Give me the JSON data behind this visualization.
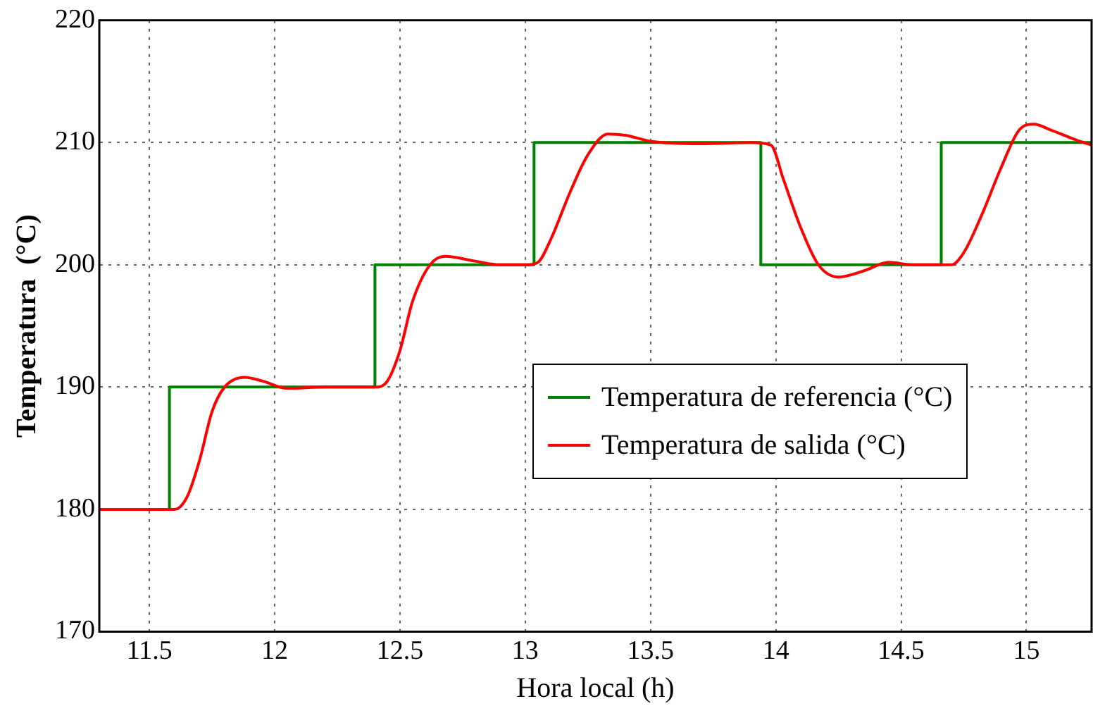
{
  "chart_data": {
    "type": "line",
    "xlabel": "Hora local (h)",
    "ylabel": "Temperatura  (°C)",
    "xlim": [
      11.3,
      15.26
    ],
    "xticks": [
      {
        "value": 11.5,
        "label": "11.5"
      },
      {
        "value": 12,
        "label": "12"
      },
      {
        "value": 12.5,
        "label": "12.5"
      },
      {
        "value": 13,
        "label": "13"
      },
      {
        "value": 13.5,
        "label": "13.5"
      },
      {
        "value": 14,
        "label": "14"
      },
      {
        "value": 14.5,
        "label": "14.5"
      },
      {
        "value": 15,
        "label": "15"
      }
    ],
    "ylim": [
      170,
      220
    ],
    "yticks": [
      170,
      180,
      190,
      200,
      210,
      220
    ],
    "grid": true,
    "legend": "right",
    "marker": "none",
    "series": [
      {
        "name": "Temperatura de referencia (°C)",
        "type": "step",
        "color": "#008000",
        "x": [
          11.3,
          11.58,
          12.4,
          13.035,
          13.94,
          14.66,
          15.26
        ],
        "values": [
          180,
          190,
          200,
          210,
          200,
          210,
          210
        ]
      },
      {
        "name": "Temperatura de salida (°C)",
        "color": "#ff0000",
        "x": [
          11.3,
          11.6,
          11.65,
          11.7,
          11.75,
          11.8,
          11.88,
          11.95,
          12.05,
          12.2,
          12.4,
          12.45,
          12.5,
          12.55,
          12.62,
          12.68,
          12.8,
          12.9,
          13.0,
          13.05,
          13.1,
          13.18,
          13.25,
          13.33,
          13.4,
          13.5,
          13.7,
          13.9,
          13.98,
          14.03,
          14.1,
          14.17,
          14.25,
          14.35,
          14.45,
          14.55,
          14.7,
          14.75,
          14.82,
          14.9,
          14.97,
          15.03,
          15.1,
          15.2,
          15.26
        ],
        "values": [
          180,
          180,
          181,
          184,
          188,
          190,
          190.8,
          190.5,
          189.9,
          190,
          190,
          190.5,
          193,
          197,
          200,
          200.7,
          200.3,
          200,
          200,
          200.2,
          202,
          206,
          209,
          210.7,
          210.6,
          210.1,
          209.9,
          210,
          209.8,
          207,
          203,
          200,
          199,
          199.5,
          200.2,
          200,
          200,
          201,
          204,
          208,
          211,
          211.5,
          211,
          210.2,
          209.8
        ]
      }
    ]
  }
}
